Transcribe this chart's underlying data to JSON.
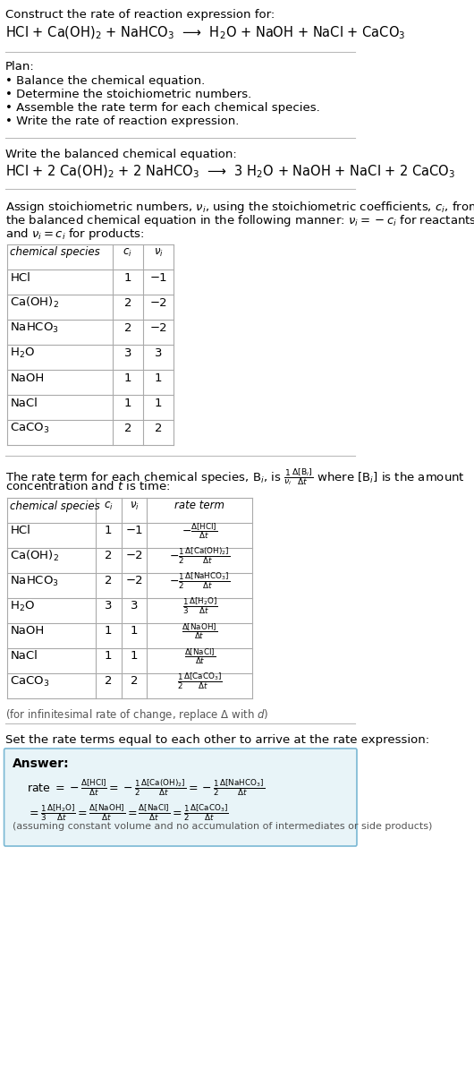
{
  "title_line1": "Construct the rate of reaction expression for:",
  "title_line2": "HCl + Ca(OH)$_2$ + NaHCO$_3$  ⟶  H$_2$O + NaOH + NaCl + CaCO$_3$",
  "plan_header": "Plan:",
  "plan_items": [
    "• Balance the chemical equation.",
    "• Determine the stoichiometric numbers.",
    "• Assemble the rate term for each chemical species.",
    "• Write the rate of reaction expression."
  ],
  "balanced_header": "Write the balanced chemical equation:",
  "balanced_eq": "HCl + 2 Ca(OH)$_2$ + 2 NaHCO$_3$  ⟶  3 H$_2$O + NaOH + NaCl + 2 CaCO$_3$",
  "stoich_intro": "Assign stoichiometric numbers, $\\nu_i$, using the stoichiometric coefficients, $c_i$, from\nthe balanced chemical equation in the following manner: $\\nu_i = -c_i$ for reactants\nand $\\nu_i = c_i$ for products:",
  "table1_headers": [
    "chemical species",
    "$c_i$",
    "$\\nu_i$"
  ],
  "table1_rows": [
    [
      "HCl",
      "1",
      "−1"
    ],
    [
      "Ca(OH)$_2$",
      "2",
      "−2"
    ],
    [
      "NaHCO$_3$",
      "2",
      "−2"
    ],
    [
      "H$_2$O",
      "3",
      "3"
    ],
    [
      "NaOH",
      "1",
      "1"
    ],
    [
      "NaCl",
      "1",
      "1"
    ],
    [
      "CaCO$_3$",
      "2",
      "2"
    ]
  ],
  "rate_term_intro": "The rate term for each chemical species, B$_i$, is $\\frac{1}{\\nu_i}\\frac{\\Delta[\\mathrm{B}_i]}{\\Delta t}$ where [B$_i$] is the amount\nconcentration and $t$ is time:",
  "table2_headers": [
    "chemical species",
    "$c_i$",
    "$\\nu_i$",
    "rate term"
  ],
  "table2_rows": [
    [
      "HCl",
      "1",
      "−1",
      "$-\\frac{\\Delta[\\mathrm{HCl}]}{\\Delta t}$"
    ],
    [
      "Ca(OH)$_2$",
      "2",
      "−2",
      "$-\\frac{1}{2}\\frac{\\Delta[\\mathrm{Ca(OH)_2}]}{\\Delta t}$"
    ],
    [
      "NaHCO$_3$",
      "2",
      "−2",
      "$-\\frac{1}{2}\\frac{\\Delta[\\mathrm{NaHCO_3}]}{\\Delta t}$"
    ],
    [
      "H$_2$O",
      "3",
      "3",
      "$\\frac{1}{3}\\frac{\\Delta[\\mathrm{H_2O}]}{\\Delta t}$"
    ],
    [
      "NaOH",
      "1",
      "1",
      "$\\frac{\\Delta[\\mathrm{NaOH}]}{\\Delta t}$"
    ],
    [
      "NaCl",
      "1",
      "1",
      "$\\frac{\\Delta[\\mathrm{NaCl}]}{\\Delta t}$"
    ],
    [
      "CaCO$_3$",
      "2",
      "2",
      "$\\frac{1}{2}\\frac{\\Delta[\\mathrm{CaCO_3}]}{\\Delta t}$"
    ]
  ],
  "infinitesimal_note": "(for infinitesimal rate of change, replace Δ with $d$)",
  "rate_expr_intro": "Set the rate terms equal to each other to arrive at the rate expression:",
  "answer_label": "Answer:",
  "answer_line1": "rate $= -\\frac{\\Delta[\\mathrm{HCl}]}{\\Delta t} = -\\frac{1}{2}\\frac{\\Delta[\\mathrm{Ca(OH)_2}]}{\\Delta t} = -\\frac{1}{2}\\frac{\\Delta[\\mathrm{NaHCO_3}]}{\\Delta t}$",
  "answer_line2": "$= \\frac{1}{3}\\frac{\\Delta[\\mathrm{H_2O}]}{\\Delta t} = \\frac{\\Delta[\\mathrm{NaOH}]}{\\Delta t} = \\frac{\\Delta[\\mathrm{NaCl}]}{\\Delta t} = \\frac{1}{2}\\frac{\\Delta[\\mathrm{CaCO_3}]}{\\Delta t}$",
  "answer_note": "(assuming constant volume and no accumulation of intermediates or side products)",
  "bg_color": "#ffffff",
  "table_border_color": "#aaaaaa",
  "answer_box_color": "#e8f4f8",
  "answer_box_border": "#7ab8d4",
  "separator_color": "#cccccc",
  "text_color": "#000000",
  "font_size": 9.5,
  "small_font_size": 8.5
}
